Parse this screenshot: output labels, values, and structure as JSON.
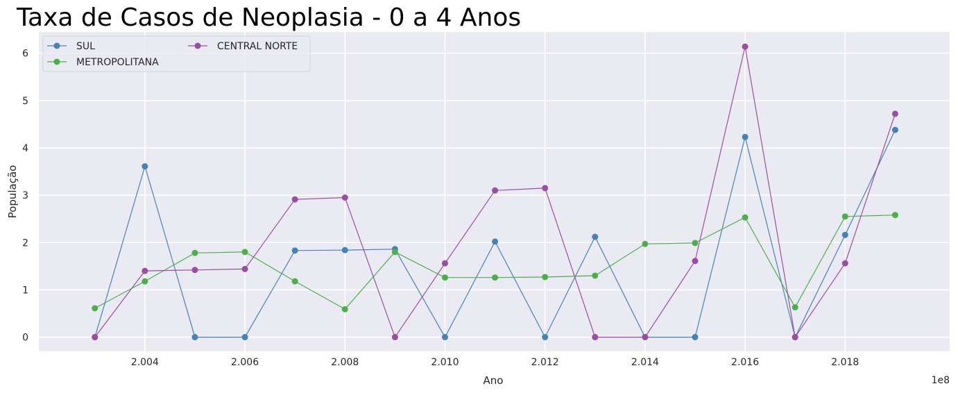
{
  "chart_data": {
    "type": "line",
    "title": "Taxa de Casos de Neoplasia - 0 a 4 Anos",
    "xlabel": "Ano",
    "ylabel": "População",
    "x_offset_label": "1e8",
    "x": [
      200300000,
      200400000,
      200500000,
      200600000,
      200700000,
      200800000,
      200900000,
      201000000,
      201100000,
      201200000,
      201300000,
      201400000,
      201500000,
      201600000,
      201700000,
      201800000,
      201900000
    ],
    "xlim": [
      200188000,
      202009000
    ],
    "ylim": [
      -0.3,
      6.45
    ],
    "x_ticks": [
      {
        "value": 200400000,
        "label": "2.004"
      },
      {
        "value": 200600000,
        "label": "2.006"
      },
      {
        "value": 200800000,
        "label": "2.008"
      },
      {
        "value": 201000000,
        "label": "2.010"
      },
      {
        "value": 201200000,
        "label": "2.012"
      },
      {
        "value": 201400000,
        "label": "2.014"
      },
      {
        "value": 201600000,
        "label": "2.016"
      },
      {
        "value": 201800000,
        "label": "2.018"
      }
    ],
    "y_ticks": [
      {
        "value": 0,
        "label": "0"
      },
      {
        "value": 1,
        "label": "1"
      },
      {
        "value": 2,
        "label": "2"
      },
      {
        "value": 3,
        "label": "3"
      },
      {
        "value": 4,
        "label": "4"
      },
      {
        "value": 5,
        "label": "5"
      },
      {
        "value": 6,
        "label": "6"
      }
    ],
    "grid": true,
    "legend_position": "top-left",
    "background_color": "#eaeaf2",
    "series": [
      {
        "name": "SUL",
        "color": "#4682b4",
        "values": [
          0,
          3.61,
          0,
          0,
          1.83,
          1.84,
          1.86,
          0,
          2.02,
          0,
          2.12,
          0,
          0,
          4.23,
          0,
          2.16,
          4.38
        ]
      },
      {
        "name": "METROPOLITANA",
        "color": "#4daf4a",
        "values": [
          0.61,
          1.18,
          1.78,
          1.8,
          1.18,
          0.59,
          1.8,
          1.26,
          1.26,
          1.27,
          1.3,
          1.97,
          1.99,
          2.53,
          0.63,
          2.55,
          2.58
        ]
      },
      {
        "name": "CENTRAL NORTE",
        "color": "#984ea3",
        "values": [
          0,
          1.4,
          1.42,
          1.44,
          2.91,
          2.95,
          0,
          1.56,
          3.1,
          3.15,
          0,
          0,
          1.61,
          6.14,
          0,
          1.56,
          4.72
        ]
      }
    ]
  }
}
